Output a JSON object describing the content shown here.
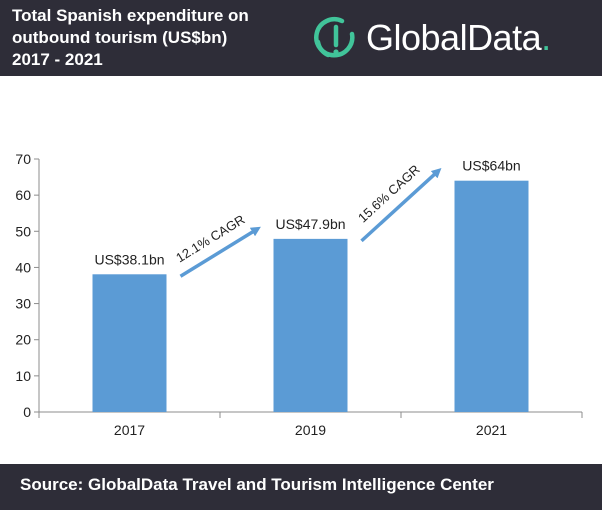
{
  "header": {
    "title_lines": [
      "Total Spanish expenditure on",
      "outbound tourism (US$bn)",
      "2017 - 2021"
    ]
  },
  "logo": {
    "text": "GlobalData",
    "dot": ".",
    "accent": "#41c49a"
  },
  "footer": {
    "source": "Source:  GlobalData Travel and Tourism Intelligence Center"
  },
  "chart_data": {
    "type": "bar",
    "categories": [
      "2017",
      "2019",
      "2021"
    ],
    "values": [
      38.1,
      47.9,
      64
    ],
    "data_labels": [
      "US$38.1bn",
      "US$47.9bn",
      "US$64bn"
    ],
    "annotations": [
      "12.1% CAGR",
      "15.6% CAGR"
    ],
    "yticks": [
      0,
      10,
      20,
      30,
      40,
      50,
      60,
      70
    ],
    "ylim": [
      0,
      70
    ],
    "grid": false,
    "legend": "none",
    "bar_color": "#5b9bd5",
    "arrow_color": "#5b9bd5"
  }
}
